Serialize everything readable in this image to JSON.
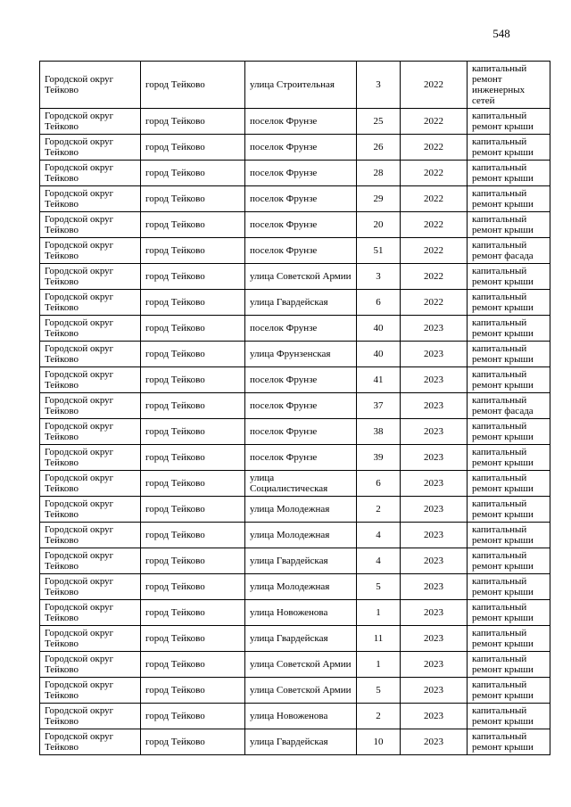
{
  "page": {
    "number": "548"
  },
  "table": {
    "rows": [
      [
        "Городской округ Тейково",
        "город Тейково",
        "улица Строительная",
        "3",
        "2022",
        "капитальный ремонт инженерных сетей"
      ],
      [
        "Городской округ Тейково",
        "город Тейково",
        "поселок Фрунзе",
        "25",
        "2022",
        "капитальный ремонт крыши"
      ],
      [
        "Городской округ Тейково",
        "город Тейково",
        "поселок Фрунзе",
        "26",
        "2022",
        "капитальный ремонт крыши"
      ],
      [
        "Городской округ Тейково",
        "город Тейково",
        "поселок Фрунзе",
        "28",
        "2022",
        "капитальный ремонт крыши"
      ],
      [
        "Городской округ Тейково",
        "город Тейково",
        "поселок Фрунзе",
        "29",
        "2022",
        "капитальный ремонт крыши"
      ],
      [
        "Городской округ Тейково",
        "город Тейково",
        "поселок Фрунзе",
        "20",
        "2022",
        "капитальный ремонт крыши"
      ],
      [
        "Городской округ Тейково",
        "город Тейково",
        "поселок Фрунзе",
        "51",
        "2022",
        "капитальный ремонт фасада"
      ],
      [
        "Городской округ Тейково",
        "город Тейково",
        "улица Советской Армии",
        "3",
        "2022",
        "капитальный ремонт крыши"
      ],
      [
        "Городской округ Тейково",
        "город Тейково",
        "улица Гвардейская",
        "6",
        "2022",
        "капитальный ремонт крыши"
      ],
      [
        "Городской округ Тейково",
        "город Тейково",
        "поселок Фрунзе",
        "40",
        "2023",
        "капитальный ремонт крыши"
      ],
      [
        "Городской округ Тейково",
        "город Тейково",
        "улица Фрунзенская",
        "40",
        "2023",
        "капитальный ремонт крыши"
      ],
      [
        "Городской округ Тейково",
        "город Тейково",
        "поселок Фрунзе",
        "41",
        "2023",
        "капитальный ремонт крыши"
      ],
      [
        "Городской округ Тейково",
        "город Тейково",
        "поселок Фрунзе",
        "37",
        "2023",
        "капитальный ремонт фасада"
      ],
      [
        "Городской округ Тейково",
        "город Тейково",
        "поселок Фрунзе",
        "38",
        "2023",
        "капитальный ремонт крыши"
      ],
      [
        "Городской округ Тейково",
        "город Тейково",
        "поселок Фрунзе",
        "39",
        "2023",
        "капитальный ремонт крыши"
      ],
      [
        "Городской округ Тейково",
        "город Тейково",
        "улица Социалистическая",
        "6",
        "2023",
        "капитальный ремонт крыши"
      ],
      [
        "Городской округ Тейково",
        "город Тейково",
        "улица Молодежная",
        "2",
        "2023",
        "капитальный ремонт крыши"
      ],
      [
        "Городской округ Тейково",
        "город Тейково",
        "улица Молодежная",
        "4",
        "2023",
        "капитальный ремонт крыши"
      ],
      [
        "Городской округ Тейково",
        "город Тейково",
        "улица Гвардейская",
        "4",
        "2023",
        "капитальный ремонт крыши"
      ],
      [
        "Городской округ Тейково",
        "город Тейково",
        "улица Молодежная",
        "5",
        "2023",
        "капитальный ремонт крыши"
      ],
      [
        "Городской округ Тейково",
        "город Тейково",
        "улица Новоженова",
        "1",
        "2023",
        "капитальный ремонт крыши"
      ],
      [
        "Городской округ Тейково",
        "город Тейково",
        "улица Гвардейская",
        "11",
        "2023",
        "капитальный ремонт крыши"
      ],
      [
        "Городской округ Тейково",
        "город Тейково",
        "улица Советской Армии",
        "1",
        "2023",
        "капитальный ремонт крыши"
      ],
      [
        "Городской округ Тейково",
        "город Тейково",
        "улица Советской Армии",
        "5",
        "2023",
        "капитальный ремонт крыши"
      ],
      [
        "Городской округ Тейково",
        "город Тейково",
        "улица Новоженова",
        "2",
        "2023",
        "капитальный ремонт крыши"
      ],
      [
        "Городской округ Тейково",
        "город Тейково",
        "улица Гвардейская",
        "10",
        "2023",
        "капитальный ремонт крыши"
      ]
    ]
  }
}
